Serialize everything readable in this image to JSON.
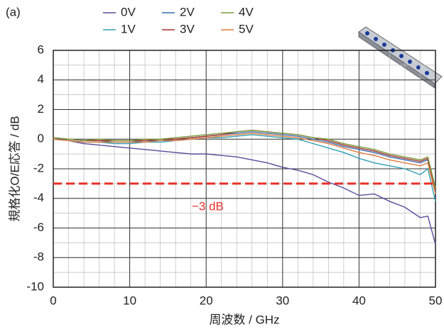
{
  "chart_data": {
    "type": "line",
    "panel_label": "(a)",
    "xlabel": "周波数 / GHz",
    "ylabel": "規格化O/E応答 / dB",
    "x": [
      0,
      2,
      4,
      6,
      8,
      10,
      12,
      14,
      16,
      18,
      20,
      22,
      24,
      26,
      28,
      30,
      32,
      34,
      36,
      38,
      40,
      42,
      44,
      46,
      48,
      49,
      50
    ],
    "series": [
      {
        "name": "0V",
        "color": "#5b4a9a",
        "values": [
          0,
          -0.1,
          -0.3,
          -0.4,
          -0.5,
          -0.6,
          -0.7,
          -0.8,
          -0.9,
          -1.0,
          -1.0,
          -1.1,
          -1.2,
          -1.4,
          -1.6,
          -1.9,
          -2.1,
          -2.4,
          -2.9,
          -3.3,
          -3.8,
          -3.7,
          -4.2,
          -4.6,
          -5.3,
          -5.2,
          -7.1
        ]
      },
      {
        "name": "1V",
        "color": "#2ea0b5",
        "values": [
          0,
          -0.1,
          -0.2,
          -0.2,
          -0.3,
          -0.3,
          -0.2,
          -0.2,
          -0.1,
          0,
          0.1,
          0.1,
          0.2,
          0.3,
          0.2,
          0.1,
          0,
          -0.3,
          -0.6,
          -0.9,
          -1.3,
          -1.6,
          -1.8,
          -2.0,
          -2.4,
          -2.0,
          -4.2
        ]
      },
      {
        "name": "2V",
        "color": "#3a6fb5",
        "values": [
          0,
          0,
          -0.1,
          -0.1,
          -0.2,
          -0.2,
          -0.1,
          -0.1,
          0,
          0.1,
          0.2,
          0.3,
          0.4,
          0.5,
          0.4,
          0.3,
          0.2,
          0,
          -0.2,
          -0.5,
          -0.7,
          -0.9,
          -1.2,
          -1.4,
          -1.6,
          -1.4,
          -3.5
        ]
      },
      {
        "name": "3V",
        "color": "#a3302b",
        "values": [
          0.1,
          0,
          -0.1,
          -0.1,
          -0.1,
          -0.1,
          -0.1,
          0,
          0,
          0.1,
          0.2,
          0.3,
          0.5,
          0.6,
          0.5,
          0.4,
          0.3,
          0.1,
          -0.1,
          -0.4,
          -0.6,
          -0.8,
          -1.1,
          -1.3,
          -1.5,
          -1.3,
          -3.4
        ]
      },
      {
        "name": "4V",
        "color": "#7b9a3a",
        "values": [
          0.1,
          0,
          -0.1,
          0,
          -0.1,
          -0.1,
          0,
          0,
          0.1,
          0.2,
          0.3,
          0.4,
          0.5,
          0.6,
          0.5,
          0.4,
          0.3,
          0.1,
          0,
          -0.3,
          -0.5,
          -0.7,
          -1.0,
          -1.2,
          -1.4,
          -1.2,
          -3.3
        ]
      },
      {
        "name": "5V",
        "color": "#e07a3a",
        "values": [
          0,
          -0.1,
          -0.2,
          -0.2,
          -0.2,
          -0.2,
          -0.2,
          -0.1,
          -0.1,
          0,
          0.1,
          0.2,
          0.3,
          0.4,
          0.3,
          0.2,
          0.1,
          -0.1,
          -0.3,
          -0.6,
          -0.9,
          -1.1,
          -1.4,
          -1.6,
          -1.8,
          -1.6,
          -3.7
        ]
      }
    ],
    "xlim": [
      0,
      50
    ],
    "xticks": [
      0,
      10,
      20,
      30,
      40,
      50
    ],
    "ylim": [
      -10,
      6
    ],
    "yticks": [
      -10,
      -8,
      -6,
      -4,
      -2,
      0,
      2,
      4,
      6
    ],
    "minor_grid": {
      "x": 2,
      "y": 1
    },
    "hline": {
      "value": -3,
      "label": "−3 dB",
      "color": "#e8302a"
    }
  }
}
